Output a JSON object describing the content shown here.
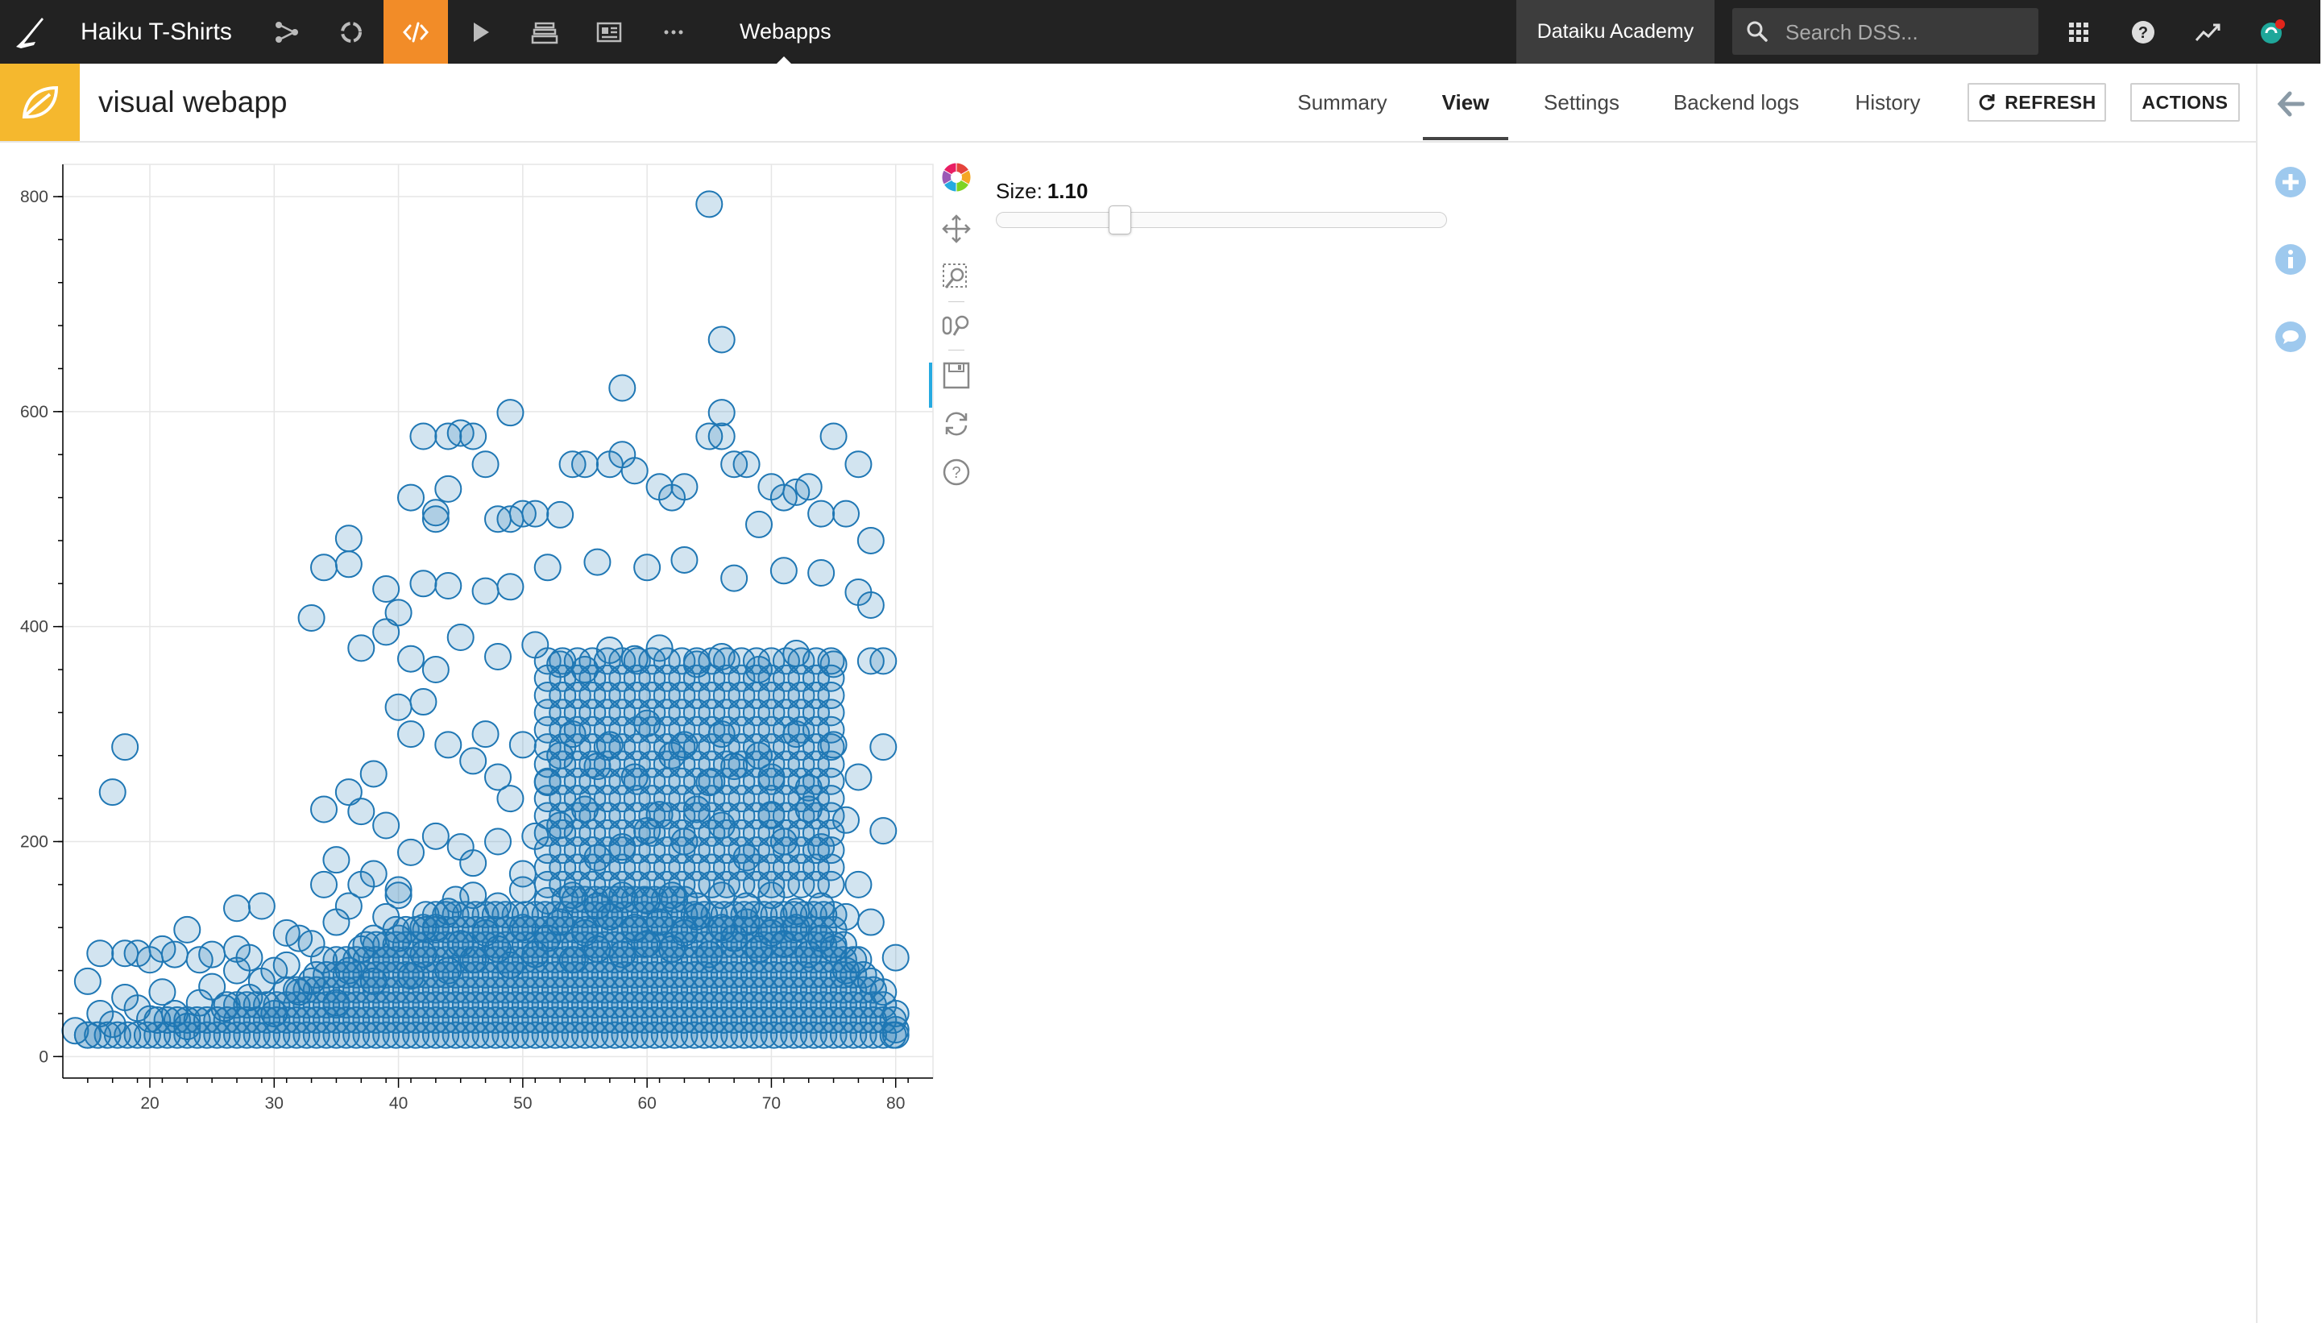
{
  "topnav": {
    "project_name": "Haiku T-Shirts",
    "section_title": "Webapps",
    "instance": "Dataiku Academy",
    "search": {
      "placeholder": "Search DSS..."
    },
    "icons": [
      "flow-icon",
      "recycle-icon",
      "code-icon",
      "play-icon",
      "deploy-icon",
      "dashboard-icon",
      "more-icon"
    ],
    "right_icons": [
      "apps-grid-icon",
      "help-icon",
      "activity-icon",
      "user-avatar-icon"
    ],
    "colors": {
      "bar": "#222222",
      "active": "#f28c28",
      "badge": "#3d3d3d"
    }
  },
  "header": {
    "title": "visual webapp",
    "icon": "webapp-leaf-icon",
    "icon_color": "#f5b82e",
    "tabs": [
      {
        "label": "Summary"
      },
      {
        "label": "View",
        "active": true
      },
      {
        "label": "Settings"
      },
      {
        "label": "Backend logs"
      },
      {
        "label": "History"
      }
    ],
    "refresh_label": "REFRESH",
    "actions_label": "ACTIONS"
  },
  "right_rail": [
    "collapse-arrow-icon",
    "add-icon",
    "info-icon",
    "discussion-icon"
  ],
  "slider": {
    "label": "Size:",
    "value": "1.10",
    "min": 0,
    "max": 4,
    "position": 1.1
  },
  "plot_tools": [
    "bokeh-logo-icon",
    "pan-icon",
    "box-zoom-icon",
    "wheel-zoom-icon",
    "save-icon",
    "reset-icon",
    "help-icon"
  ],
  "chart_data": {
    "type": "scatter",
    "title": "",
    "xlabel": "",
    "ylabel": "",
    "xlim": [
      13,
      83
    ],
    "ylim": [
      -20,
      830
    ],
    "xticks": [
      20,
      30,
      40,
      50,
      60,
      70,
      80
    ],
    "yticks": [
      0,
      200,
      400,
      600,
      800
    ],
    "grid": true,
    "marker": {
      "fill": "#1f77b4",
      "fill_alpha": 0.2,
      "line": "#1f77b4"
    },
    "series": [
      {
        "points": [
          [
            65,
            793
          ],
          [
            66,
            667
          ],
          [
            58,
            622
          ],
          [
            49,
            599
          ],
          [
            66,
            599
          ],
          [
            42,
            577
          ],
          [
            44,
            577
          ],
          [
            45,
            580
          ],
          [
            46,
            577
          ],
          [
            47,
            551
          ],
          [
            65,
            577
          ],
          [
            66,
            577
          ],
          [
            75,
            577
          ],
          [
            77,
            551
          ],
          [
            41,
            520
          ],
          [
            43,
            500
          ],
          [
            43,
            506
          ],
          [
            44,
            528
          ],
          [
            48,
            500
          ],
          [
            49,
            500
          ],
          [
            50,
            505
          ],
          [
            51,
            505
          ],
          [
            53,
            504
          ],
          [
            54,
            551
          ],
          [
            55,
            551
          ],
          [
            57,
            551
          ],
          [
            58,
            560
          ],
          [
            59,
            545
          ],
          [
            61,
            530
          ],
          [
            62,
            520
          ],
          [
            63,
            530
          ],
          [
            67,
            551
          ],
          [
            68,
            551
          ],
          [
            69,
            495
          ],
          [
            70,
            530
          ],
          [
            71,
            520
          ],
          [
            72,
            525
          ],
          [
            73,
            530
          ],
          [
            74,
            505
          ],
          [
            76,
            505
          ],
          [
            78,
            480
          ],
          [
            34,
            455
          ],
          [
            36,
            482
          ],
          [
            36,
            458
          ],
          [
            39,
            435
          ],
          [
            40,
            413
          ],
          [
            42,
            440
          ],
          [
            44,
            438
          ],
          [
            47,
            433
          ],
          [
            49,
            437
          ],
          [
            52,
            455
          ],
          [
            56,
            460
          ],
          [
            60,
            455
          ],
          [
            63,
            462
          ],
          [
            67,
            445
          ],
          [
            71,
            452
          ],
          [
            74,
            450
          ],
          [
            77,
            432
          ],
          [
            78,
            420
          ],
          [
            33,
            408
          ],
          [
            37,
            380
          ],
          [
            39,
            395
          ],
          [
            41,
            370
          ],
          [
            43,
            360
          ],
          [
            45,
            390
          ],
          [
            48,
            372
          ],
          [
            51,
            383
          ],
          [
            53,
            365
          ],
          [
            55,
            360
          ],
          [
            57,
            378
          ],
          [
            59,
            370
          ],
          [
            61,
            380
          ],
          [
            64,
            365
          ],
          [
            66,
            372
          ],
          [
            69,
            360
          ],
          [
            72,
            375
          ],
          [
            75,
            365
          ],
          [
            78,
            368
          ],
          [
            79,
            368
          ],
          [
            18,
            288
          ],
          [
            17,
            246
          ],
          [
            34,
            230
          ],
          [
            36,
            246
          ],
          [
            37,
            228
          ],
          [
            38,
            263
          ],
          [
            39,
            215
          ],
          [
            40,
            325
          ],
          [
            41,
            300
          ],
          [
            42,
            330
          ],
          [
            44,
            290
          ],
          [
            46,
            275
          ],
          [
            47,
            300
          ],
          [
            48,
            260
          ],
          [
            49,
            240
          ],
          [
            50,
            290
          ],
          [
            52,
            255
          ],
          [
            53,
            280
          ],
          [
            54,
            300
          ],
          [
            56,
            270
          ],
          [
            57,
            290
          ],
          [
            59,
            260
          ],
          [
            60,
            310
          ],
          [
            62,
            280
          ],
          [
            63,
            290
          ],
          [
            65,
            255
          ],
          [
            66,
            300
          ],
          [
            67,
            270
          ],
          [
            69,
            280
          ],
          [
            70,
            260
          ],
          [
            72,
            300
          ],
          [
            73,
            250
          ],
          [
            75,
            290
          ],
          [
            77,
            260
          ],
          [
            79,
            288
          ],
          [
            35,
            183
          ],
          [
            37,
            160
          ],
          [
            38,
            170
          ],
          [
            40,
            155
          ],
          [
            41,
            190
          ],
          [
            43,
            205
          ],
          [
            45,
            195
          ],
          [
            46,
            180
          ],
          [
            48,
            200
          ],
          [
            50,
            170
          ],
          [
            51,
            205
          ],
          [
            53,
            215
          ],
          [
            55,
            230
          ],
          [
            56,
            185
          ],
          [
            58,
            195
          ],
          [
            60,
            210
          ],
          [
            61,
            225
          ],
          [
            63,
            200
          ],
          [
            64,
            230
          ],
          [
            66,
            215
          ],
          [
            68,
            185
          ],
          [
            70,
            225
          ],
          [
            71,
            200
          ],
          [
            73,
            230
          ],
          [
            74,
            195
          ],
          [
            76,
            220
          ],
          [
            77,
            160
          ],
          [
            79,
            210
          ],
          [
            16,
            96
          ],
          [
            18,
            96
          ],
          [
            19,
            96
          ],
          [
            20,
            90
          ],
          [
            21,
            100
          ],
          [
            22,
            95
          ],
          [
            23,
            118
          ],
          [
            24,
            90
          ],
          [
            25,
            95
          ],
          [
            27,
            138
          ],
          [
            27,
            100
          ],
          [
            28,
            92
          ],
          [
            29,
            140
          ],
          [
            30,
            80
          ],
          [
            31,
            115
          ],
          [
            32,
            110
          ],
          [
            33,
            105
          ],
          [
            34,
            160
          ],
          [
            35,
            125
          ],
          [
            36,
            140
          ],
          [
            38,
            110
          ],
          [
            39,
            130
          ],
          [
            40,
            150
          ],
          [
            42,
            120
          ],
          [
            44,
            135
          ],
          [
            46,
            150
          ],
          [
            48,
            140
          ],
          [
            50,
            155
          ],
          [
            52,
            145
          ],
          [
            54,
            150
          ],
          [
            56,
            140
          ],
          [
            58,
            150
          ],
          [
            60,
            145
          ],
          [
            62,
            150
          ],
          [
            64,
            140
          ],
          [
            66,
            150
          ],
          [
            68,
            140
          ],
          [
            70,
            150
          ],
          [
            72,
            135
          ],
          [
            74,
            140
          ],
          [
            76,
            130
          ],
          [
            78,
            125
          ],
          [
            80,
            92
          ],
          [
            15,
            70
          ],
          [
            14,
            24
          ],
          [
            15,
            20
          ],
          [
            16,
            40
          ],
          [
            17,
            30
          ],
          [
            18,
            55
          ],
          [
            19,
            45
          ],
          [
            20,
            35
          ],
          [
            21,
            60
          ],
          [
            22,
            40
          ],
          [
            23,
            28
          ],
          [
            24,
            50
          ],
          [
            25,
            65
          ],
          [
            26,
            45
          ],
          [
            27,
            80
          ],
          [
            28,
            55
          ],
          [
            29,
            70
          ],
          [
            30,
            40
          ],
          [
            31,
            85
          ],
          [
            32,
            60
          ],
          [
            33,
            70
          ],
          [
            34,
            90
          ],
          [
            35,
            50
          ],
          [
            36,
            80
          ],
          [
            37,
            100
          ],
          [
            38,
            70
          ],
          [
            39,
            90
          ],
          [
            40,
            110
          ],
          [
            41,
            75
          ],
          [
            42,
            95
          ],
          [
            43,
            120
          ],
          [
            44,
            80
          ],
          [
            45,
            105
          ],
          [
            46,
            90
          ],
          [
            47,
            115
          ],
          [
            48,
            100
          ],
          [
            49,
            85
          ],
          [
            50,
            120
          ],
          [
            51,
            95
          ],
          [
            52,
            110
          ],
          [
            53,
            125
          ],
          [
            54,
            90
          ],
          [
            55,
            115
          ],
          [
            56,
            100
          ],
          [
            57,
            130
          ],
          [
            58,
            95
          ],
          [
            59,
            120
          ],
          [
            60,
            105
          ],
          [
            61,
            125
          ],
          [
            62,
            100
          ],
          [
            63,
            115
          ],
          [
            64,
            130
          ],
          [
            65,
            95
          ],
          [
            66,
            120
          ],
          [
            67,
            110
          ],
          [
            68,
            125
          ],
          [
            69,
            100
          ],
          [
            70,
            115
          ],
          [
            71,
            105
          ],
          [
            72,
            120
          ],
          [
            73,
            95
          ],
          [
            74,
            110
          ],
          [
            75,
            100
          ],
          [
            76,
            80
          ],
          [
            77,
            90
          ],
          [
            78,
            70
          ],
          [
            79,
            60
          ],
          [
            80,
            40
          ],
          [
            80,
            25
          ],
          [
            80,
            20
          ]
        ]
      }
    ]
  }
}
